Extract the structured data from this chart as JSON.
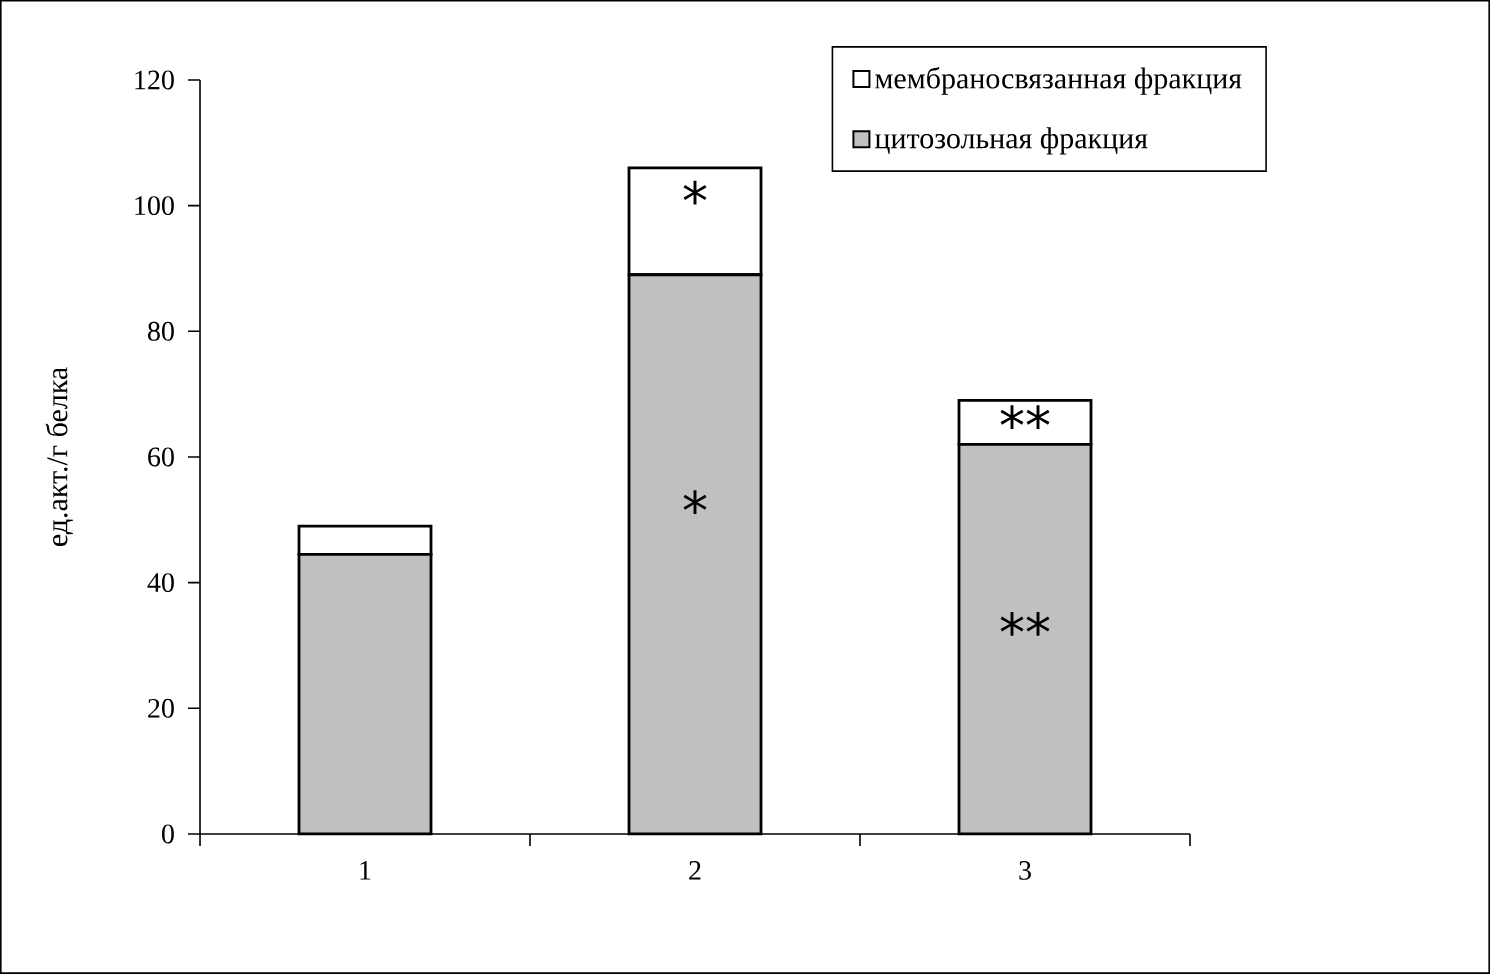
{
  "chart_data": {
    "type": "bar",
    "stacked": true,
    "categories": [
      "1",
      "2",
      "3"
    ],
    "series": [
      {
        "name": "цитозольная фракция",
        "color": "#c0c0c0",
        "values": [
          44.5,
          89,
          62
        ]
      },
      {
        "name": "мембраносвязанная фракция",
        "color": "#ffffff",
        "values": [
          4.5,
          17,
          7
        ]
      }
    ],
    "ylabel": "ед.акт./г белка",
    "ylim": [
      0,
      120
    ],
    "yticks": [
      0,
      20,
      40,
      60,
      80,
      100,
      120
    ],
    "legend": "top right",
    "annotations": [
      "*",
      "*",
      "**",
      "**"
    ]
  }
}
